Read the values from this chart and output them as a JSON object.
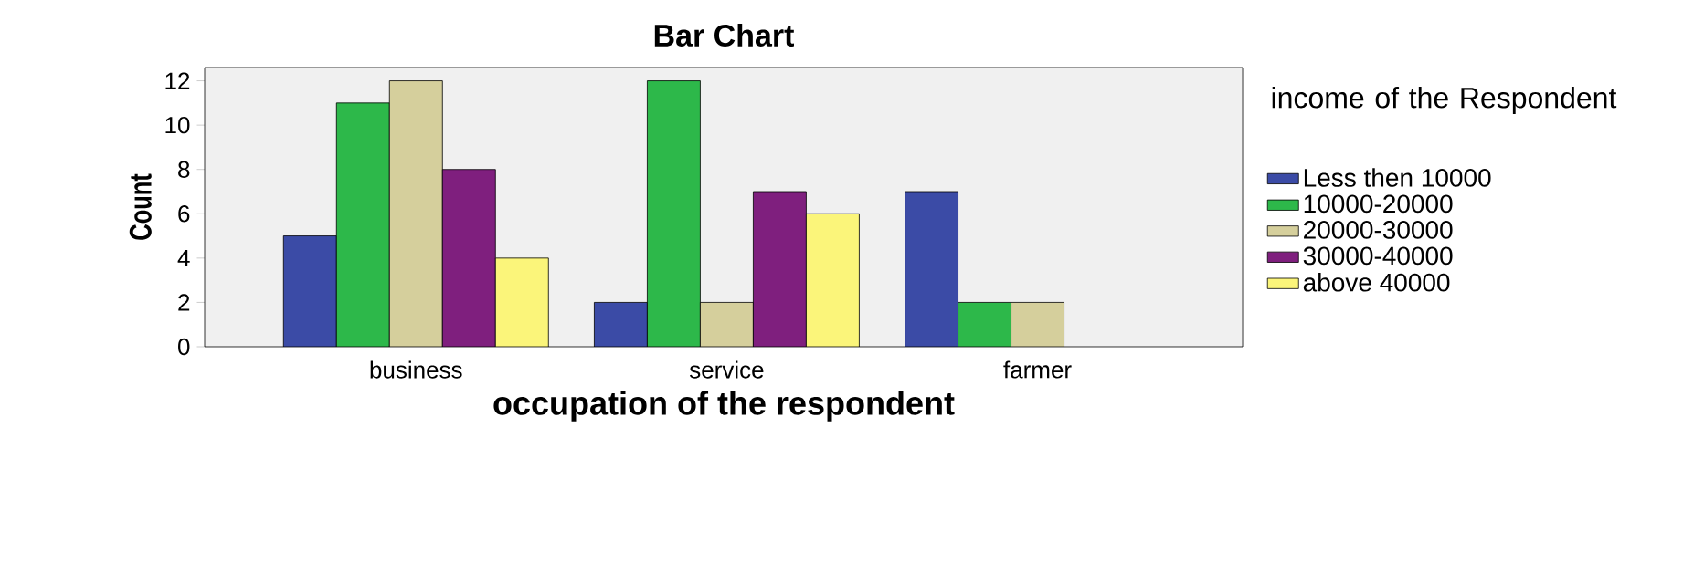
{
  "chart_data": {
    "type": "bar",
    "title": "Bar Chart",
    "xlabel": "occupation of the respondent",
    "ylabel": "Count",
    "legend_title": "income of the Respondent",
    "categories": [
      "business",
      "service",
      "farmer"
    ],
    "series": [
      {
        "name": "Less then 10000",
        "color": "#3b4ba6",
        "values": [
          5,
          2,
          7
        ]
      },
      {
        "name": "10000-20000",
        "color": "#2db84a",
        "values": [
          11,
          12,
          2
        ]
      },
      {
        "name": "20000-30000",
        "color": "#d5cf9c",
        "values": [
          12,
          2,
          2
        ]
      },
      {
        "name": "30000-40000",
        "color": "#7f1f7e",
        "values": [
          8,
          7,
          null
        ]
      },
      {
        "name": "above 40000",
        "color": "#fbf57a",
        "values": [
          4,
          6,
          null
        ]
      }
    ],
    "ylim": [
      0,
      12.6
    ],
    "yticks": [
      0,
      2,
      4,
      6,
      8,
      10,
      12
    ],
    "legend": "right"
  }
}
